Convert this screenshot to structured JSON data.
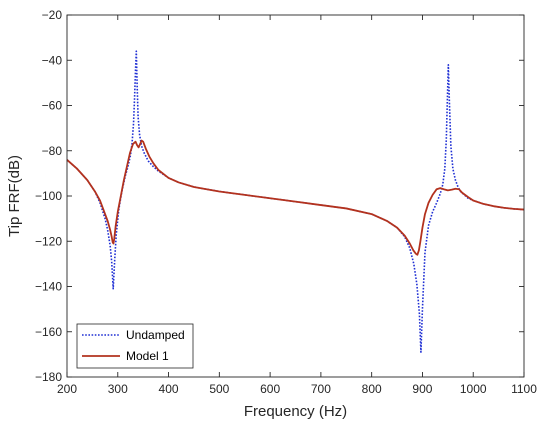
{
  "chart_data": {
    "type": "line",
    "title": "",
    "xlabel": "Frequency (Hz)",
    "ylabel": "Tip FRF(dB)",
    "xlim": [
      200,
      1100
    ],
    "ylim": [
      -180,
      -20
    ],
    "x_ticks": [
      200,
      300,
      400,
      500,
      600,
      700,
      800,
      900,
      1000,
      1100
    ],
    "y_ticks": [
      -180,
      -160,
      -140,
      -120,
      -100,
      -80,
      -60,
      -40,
      -20
    ],
    "x_tick_labels": [
      "200",
      "300",
      "400",
      "500",
      "600",
      "700",
      "800",
      "900",
      "1000",
      "1100"
    ],
    "y_tick_labels": [
      "−180",
      "−160",
      "−140",
      "−120",
      "−100",
      "−80",
      "−60",
      "−40",
      "−20"
    ],
    "grid": false,
    "legend_position": "bottom-left",
    "series": [
      {
        "name": "Undamped",
        "color": "#1f2fd4",
        "style": "dotted",
        "x": [
          200,
          220,
          240,
          255,
          265,
          275,
          280,
          285,
          288,
          291,
          294,
          297,
          302,
          308,
          315,
          320,
          325,
          328,
          331,
          333,
          335,
          336.5,
          338,
          340,
          343,
          347,
          352,
          360,
          370,
          380,
          400,
          420,
          450,
          500,
          550,
          600,
          650,
          700,
          750,
          800,
          830,
          850,
          865,
          875,
          883,
          889,
          894,
          897,
          900,
          905,
          912,
          920,
          928,
          935,
          940,
          944,
          947,
          949,
          951,
          953,
          956,
          960,
          965,
          970,
          975,
          980,
          990,
          1000,
          1020,
          1040,
          1060,
          1080,
          1100
        ],
        "y": [
          -84,
          -88,
          -93,
          -98,
          -103,
          -110,
          -115,
          -122,
          -129,
          -141,
          -128,
          -117,
          -106,
          -98,
          -91,
          -87,
          -82,
          -77,
          -68,
          -57,
          -44,
          -36,
          -50,
          -65,
          -73,
          -78,
          -81,
          -84.5,
          -87,
          -89,
          -92,
          -94,
          -96,
          -98,
          -99.5,
          -101,
          -102.5,
          -104,
          -105.5,
          -108,
          -111,
          -114,
          -118,
          -123,
          -130,
          -139,
          -152,
          -169,
          -150,
          -125,
          -113,
          -107,
          -103,
          -99,
          -95,
          -88,
          -75,
          -58,
          -42,
          -58,
          -78,
          -88,
          -93,
          -96,
          -98,
          -99,
          -101,
          -102,
          -103.5,
          -104.5,
          -105.2,
          -105.7,
          -106
        ]
      },
      {
        "name": "Model 1",
        "color": "#b3321e",
        "style": "solid",
        "x": [
          200,
          220,
          240,
          255,
          265,
          275,
          280,
          285,
          288,
          290,
          291.5,
          293,
          296,
          300,
          306,
          312,
          318,
          324,
          330,
          335,
          338,
          341,
          344,
          347,
          350,
          355,
          362,
          370,
          380,
          400,
          420,
          450,
          500,
          550,
          600,
          650,
          700,
          750,
          800,
          830,
          850,
          865,
          875,
          882,
          887,
          890,
          893,
          896,
          900,
          905,
          912,
          920,
          928,
          935,
          942,
          950,
          958,
          965,
          972,
          978,
          984,
          990,
          1000,
          1020,
          1040,
          1060,
          1080,
          1100
        ],
        "y": [
          -84,
          -88,
          -93,
          -98,
          -102,
          -108,
          -111,
          -115,
          -118,
          -120.5,
          -121,
          -119,
          -113,
          -107,
          -100,
          -93,
          -87,
          -81,
          -77,
          -76,
          -77.5,
          -78.5,
          -77,
          -75.5,
          -76,
          -79,
          -82.5,
          -85.5,
          -88.5,
          -92,
          -94,
          -96,
          -98,
          -99.5,
          -101,
          -102.5,
          -104,
          -105.5,
          -108,
          -111,
          -114,
          -117.5,
          -121,
          -124,
          -125.5,
          -126,
          -124,
          -120,
          -114,
          -108,
          -103,
          -99.5,
          -97,
          -96.5,
          -97,
          -97.5,
          -97.2,
          -96.8,
          -97,
          -98.5,
          -99.5,
          -100.5,
          -102,
          -103.5,
          -104.5,
          -105.2,
          -105.7,
          -106
        ]
      }
    ]
  }
}
